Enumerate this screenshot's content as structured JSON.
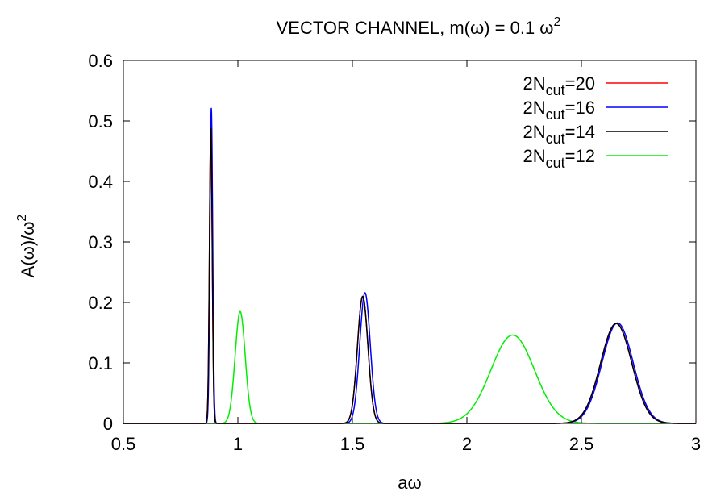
{
  "chart_data": {
    "type": "line",
    "title_main": "VECTOR CHANNEL, m(",
    "title_omega": "ω",
    "title_mid": ") = 0.1 ",
    "title_omega2": "ω",
    "title_exp": "2",
    "xlabel": "aω",
    "ylabel_main": "A(ω)/ω",
    "ylabel_exp": "2",
    "xlim": [
      0.5,
      3
    ],
    "ylim": [
      0,
      0.6
    ],
    "x_ticks": [
      0.5,
      1,
      1.5,
      2,
      2.5,
      3
    ],
    "x_tick_labels": [
      "0.5",
      "1",
      "1.5",
      "2",
      "2.5",
      "3"
    ],
    "y_ticks": [
      0,
      0.1,
      0.2,
      0.3,
      0.4,
      0.5,
      0.6
    ],
    "y_tick_labels": [
      "0",
      "0.1",
      "0.2",
      "0.3",
      "0.4",
      "0.5",
      "0.6"
    ],
    "grid": false,
    "legend_position": "top-right",
    "series": [
      {
        "name_prefix": "2N",
        "name_sub": "cut",
        "name_suffix": "=20",
        "color": "#ff0000",
        "peaks": [
          {
            "x": 0.882,
            "height": 0.49,
            "width": 0.006
          },
          {
            "x": 1.545,
            "height": 0.21,
            "width": 0.023
          },
          {
            "x": 2.652,
            "height": 0.165,
            "width": 0.068
          }
        ]
      },
      {
        "name_prefix": "2N",
        "name_sub": "cut",
        "name_suffix": "=16",
        "color": "#0000ff",
        "peaks": [
          {
            "x": 0.884,
            "height": 0.522,
            "width": 0.006
          },
          {
            "x": 1.555,
            "height": 0.216,
            "width": 0.023
          },
          {
            "x": 2.658,
            "height": 0.166,
            "width": 0.068
          }
        ]
      },
      {
        "name_prefix": "2N",
        "name_sub": "cut",
        "name_suffix": "=14",
        "color": "#000000",
        "peaks": [
          {
            "x": 0.882,
            "height": 0.49,
            "width": 0.006
          },
          {
            "x": 1.545,
            "height": 0.21,
            "width": 0.023
          },
          {
            "x": 2.652,
            "height": 0.165,
            "width": 0.068
          }
        ]
      },
      {
        "name_prefix": "2N",
        "name_sub": "cut",
        "name_suffix": "=12",
        "color": "#00ee00",
        "peaks": [
          {
            "x": 1.01,
            "height": 0.185,
            "width": 0.022
          },
          {
            "x": 2.2,
            "height": 0.146,
            "width": 0.095
          }
        ]
      }
    ]
  }
}
